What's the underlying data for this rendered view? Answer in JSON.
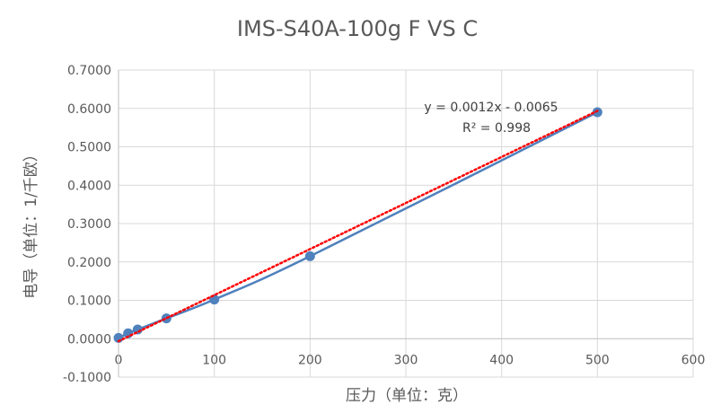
{
  "chart_data": {
    "type": "scatter",
    "title": "IMS-S40A-100g F VS C",
    "xlabel": "压力（单位：克）",
    "ylabel": "电导（单位：1/千欧）",
    "xlim": [
      0,
      600
    ],
    "ylim": [
      -0.1,
      0.7
    ],
    "x_ticks": [
      "0",
      "100",
      "200",
      "300",
      "400",
      "500",
      "600"
    ],
    "y_ticks": [
      "-0.1000",
      "0.0000",
      "0.1000",
      "0.2000",
      "0.3000",
      "0.4000",
      "0.5000",
      "0.6000",
      "0.7000"
    ],
    "grid": true,
    "series": [
      {
        "x": [
          0,
          10,
          20,
          50,
          100,
          200,
          500
        ],
        "y": [
          0.002,
          0.014,
          0.024,
          0.053,
          0.102,
          0.215,
          0.59
        ],
        "color": "#4f81bd",
        "marker": "circle",
        "line": "smooth"
      }
    ],
    "trendline": {
      "type": "linear",
      "slope": 0.0012,
      "intercept": -0.0065,
      "x_range": [
        0,
        500
      ],
      "color": "#ff0000",
      "style": "dotted",
      "equation": "y = 0.0012x - 0.0065",
      "r_squared": "R² = 0.998"
    }
  }
}
